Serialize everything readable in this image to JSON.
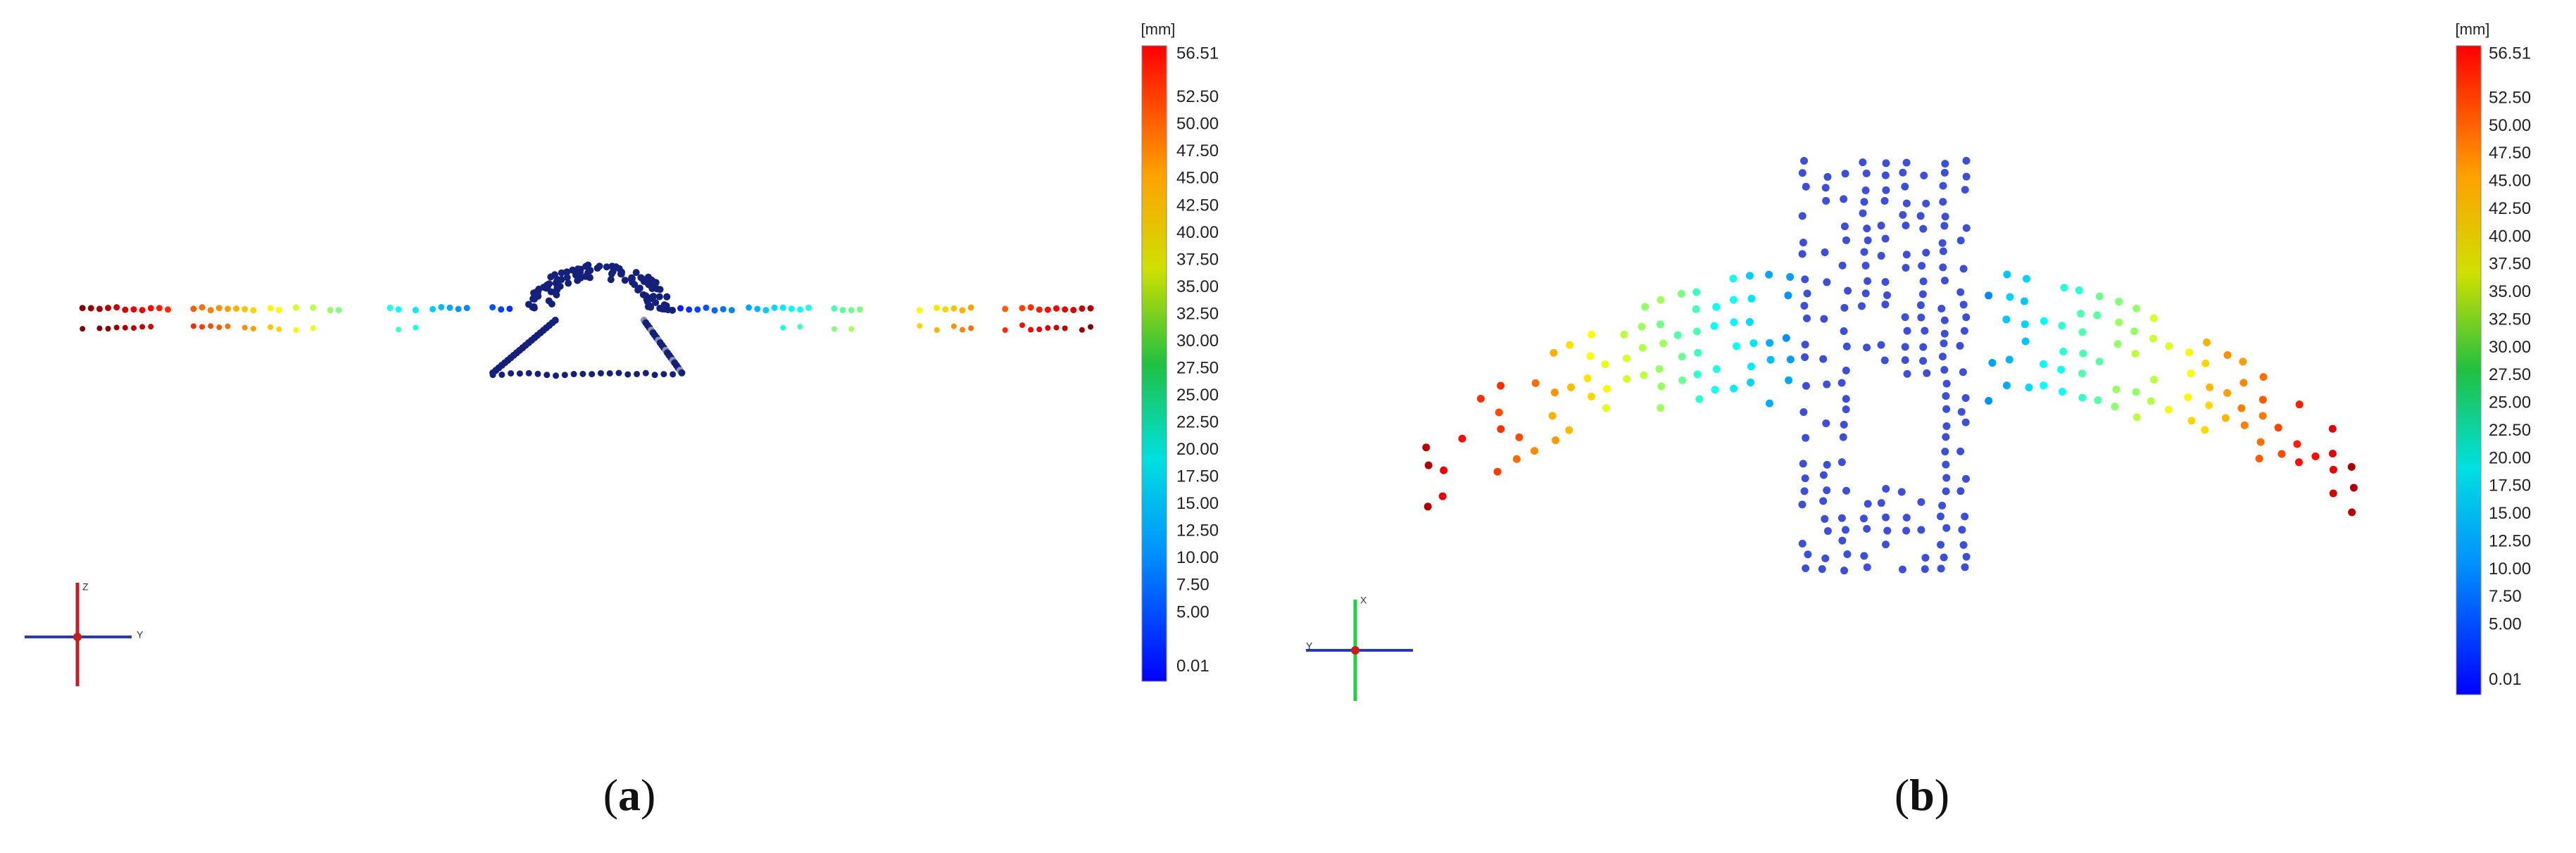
{
  "panels": [
    {
      "unit": "[mm]",
      "scale_labels": [
        "56.51",
        "52.50",
        "50.00",
        "47.50",
        "45.00",
        "42.50",
        "40.00",
        "37.50",
        "35.00",
        "32.50",
        "30.00",
        "27.50",
        "25.00",
        "22.50",
        "20.00",
        "17.50",
        "15.00",
        "12.50",
        "10.00",
        "7.50",
        "5.00",
        "0.01"
      ],
      "triad": [
        "Z",
        "Y"
      ],
      "caption": [
        "(",
        "a",
        ")"
      ]
    },
    {
      "unit": "[mm]",
      "scale_labels": [
        "56.51",
        "52.50",
        "50.00",
        "47.50",
        "45.00",
        "42.50",
        "40.00",
        "37.50",
        "35.00",
        "32.50",
        "30.00",
        "27.50",
        "25.00",
        "22.50",
        "20.00",
        "17.50",
        "15.00",
        "12.50",
        "10.00",
        "7.50",
        "5.00",
        "0.01"
      ],
      "triad": [
        "X",
        "Y"
      ],
      "caption": [
        "(",
        "b",
        ")"
      ]
    }
  ]
}
